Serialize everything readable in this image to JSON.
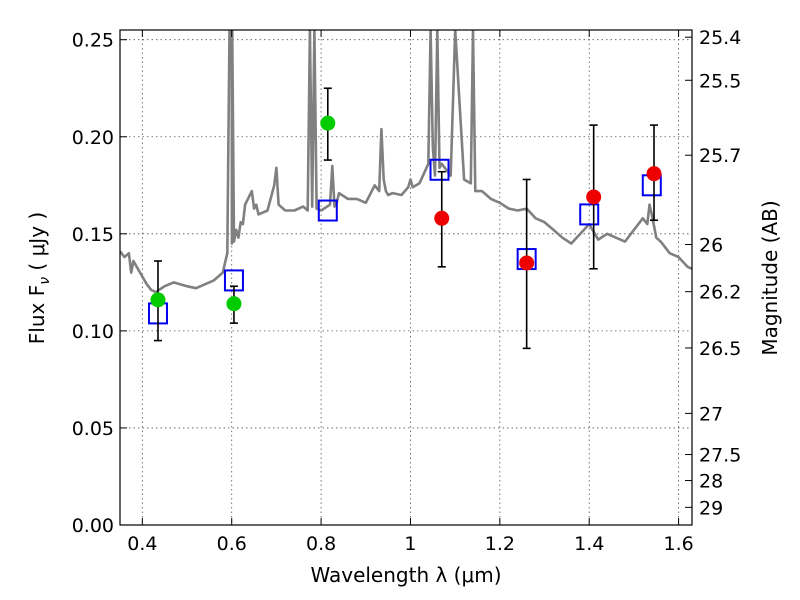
{
  "chart_data": {
    "type": "scatter",
    "xlabel": "Wavelength  λ (μm)",
    "ylabel": "Flux  F",
    "ylabel_sub": "ν",
    "ylabel_unit": " ( μJy )",
    "ylabel_right": "Magnitude (AB)",
    "xlim": [
      0.35,
      1.63
    ],
    "ylim": [
      0.0,
      0.255
    ],
    "xticks": [
      0.4,
      0.6,
      0.8,
      1.0,
      1.2,
      1.4,
      1.6
    ],
    "xtick_labels": [
      "0.4",
      "0.6",
      "0.8",
      "1",
      "1.2",
      "1.4",
      "1.6"
    ],
    "yticks": [
      0.0,
      0.05,
      0.1,
      0.15,
      0.2,
      0.25
    ],
    "ytick_labels": [
      "0.00",
      "0.05",
      "0.10",
      "0.15",
      "0.20",
      "0.25"
    ],
    "right_ticks": [
      {
        "label": "25.4",
        "flux": 0.2513
      },
      {
        "label": "25.5",
        "flux": 0.2291
      },
      {
        "label": "25.7",
        "flux": 0.1905
      },
      {
        "label": "26",
        "flux": 0.1445
      },
      {
        "label": "26.2",
        "flux": 0.1202
      },
      {
        "label": "26.5",
        "flux": 0.0912
      },
      {
        "label": "27",
        "flux": 0.0575
      },
      {
        "label": "27.5",
        "flux": 0.0363
      },
      {
        "label": "28",
        "flux": 0.0229
      },
      {
        "label": "29",
        "flux": 0.0091
      }
    ],
    "grid": true,
    "series": [
      {
        "kind": "spectrum",
        "color": "#808080",
        "x": [
          0.35,
          0.36,
          0.37,
          0.375,
          0.38,
          0.39,
          0.4,
          0.41,
          0.42,
          0.43,
          0.45,
          0.47,
          0.5,
          0.52,
          0.54,
          0.56,
          0.58,
          0.585,
          0.59,
          0.595,
          0.6,
          0.6005,
          0.601,
          0.605,
          0.61,
          0.615,
          0.62,
          0.625,
          0.63,
          0.645,
          0.65,
          0.655,
          0.66,
          0.68,
          0.695,
          0.7,
          0.705,
          0.72,
          0.74,
          0.76,
          0.77,
          0.775,
          0.78,
          0.785,
          0.79,
          0.8,
          0.82,
          0.825,
          0.83,
          0.835,
          0.84,
          0.86,
          0.88,
          0.9,
          0.92,
          0.93,
          0.935,
          0.94,
          0.945,
          0.95,
          0.96,
          0.98,
          0.995,
          1.0,
          1.005,
          1.02,
          1.04,
          1.045,
          1.05,
          1.055,
          1.06,
          1.065,
          1.07,
          1.09,
          1.1,
          1.12,
          1.135,
          1.14,
          1.145,
          1.16,
          1.18,
          1.2,
          1.22,
          1.24,
          1.26,
          1.28,
          1.3,
          1.32,
          1.34,
          1.36,
          1.38,
          1.4,
          1.42,
          1.44,
          1.46,
          1.48,
          1.5,
          1.52,
          1.53,
          1.535,
          1.54,
          1.55,
          1.56,
          1.58,
          1.6,
          1.62,
          1.63
        ],
        "y": [
          0.141,
          0.138,
          0.14,
          0.13,
          0.136,
          0.132,
          0.128,
          0.124,
          0.121,
          0.12,
          0.123,
          0.125,
          0.123,
          0.122,
          0.124,
          0.126,
          0.13,
          0.135,
          0.14,
          0.255,
          0.255,
          0.145,
          0.255,
          0.146,
          0.152,
          0.148,
          0.156,
          0.155,
          0.165,
          0.172,
          0.163,
          0.165,
          0.16,
          0.162,
          0.175,
          0.184,
          0.165,
          0.162,
          0.162,
          0.164,
          0.162,
          0.255,
          0.164,
          0.255,
          0.163,
          0.162,
          0.165,
          0.185,
          0.164,
          0.166,
          0.171,
          0.168,
          0.168,
          0.166,
          0.175,
          0.172,
          0.204,
          0.178,
          0.172,
          0.17,
          0.171,
          0.17,
          0.174,
          0.178,
          0.174,
          0.176,
          0.186,
          0.255,
          0.195,
          0.18,
          0.255,
          0.184,
          0.186,
          0.18,
          0.255,
          0.178,
          0.176,
          0.255,
          0.172,
          0.172,
          0.168,
          0.166,
          0.163,
          0.162,
          0.163,
          0.158,
          0.156,
          0.152,
          0.148,
          0.145,
          0.15,
          0.155,
          0.147,
          0.15,
          0.148,
          0.146,
          0.152,
          0.158,
          0.155,
          0.165,
          0.16,
          0.148,
          0.146,
          0.14,
          0.138,
          0.133,
          0.132
        ]
      },
      {
        "kind": "model",
        "marker": "open-square",
        "color": "#0000ee",
        "x": [
          0.435,
          0.605,
          0.815,
          1.065,
          1.26,
          1.4,
          1.54
        ],
        "y": [
          0.109,
          0.126,
          0.162,
          0.183,
          0.137,
          0.16,
          0.175
        ]
      },
      {
        "kind": "observed",
        "marker": "filled-circle",
        "color": "#00cc00",
        "x": [
          0.435,
          0.605,
          0.815
        ],
        "y": [
          0.116,
          0.114,
          0.207
        ],
        "yerr_low": [
          0.095,
          0.104,
          0.188
        ],
        "yerr_high": [
          0.136,
          0.123,
          0.225
        ]
      },
      {
        "kind": "observed",
        "marker": "filled-circle",
        "color": "#ee0000",
        "x": [
          1.07,
          1.26,
          1.41,
          1.545
        ],
        "y": [
          0.158,
          0.135,
          0.169,
          0.181
        ],
        "yerr_low": [
          0.133,
          0.091,
          0.132,
          0.157
        ],
        "yerr_high": [
          0.182,
          0.178,
          0.206,
          0.206
        ]
      }
    ]
  }
}
